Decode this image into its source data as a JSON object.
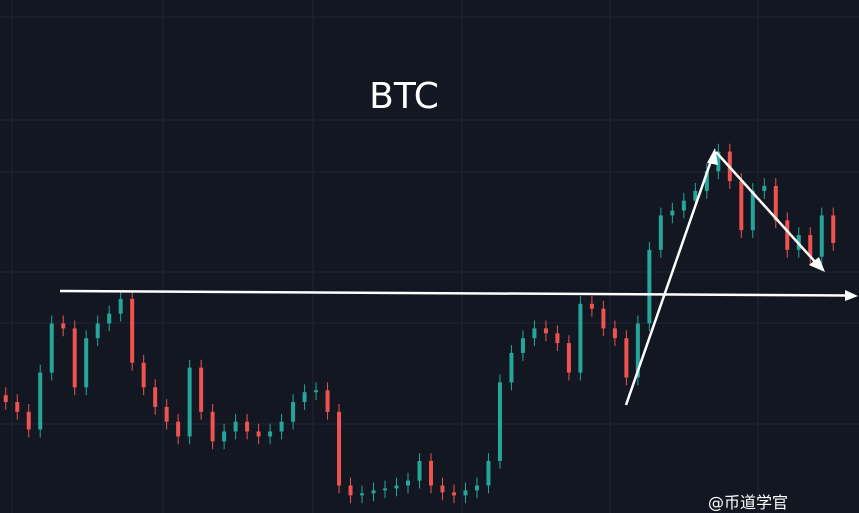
{
  "chart_data": {
    "type": "candlestick",
    "title": "BTC",
    "watermark": "@币道学官",
    "open": [
      110,
      103,
      93,
      75,
      133,
      183,
      178,
      118,
      168,
      183,
      193,
      208,
      143,
      118,
      98,
      83,
      68,
      138,
      93,
      63,
      73,
      83,
      73,
      68,
      73,
      83,
      103,
      113,
      115,
      93,
      18,
      8,
      10,
      13,
      15,
      18,
      23,
      43,
      18,
      11,
      8,
      13,
      18,
      43,
      123,
      153,
      168,
      178,
      173,
      163,
      133,
      203,
      198,
      178,
      168,
      128,
      183,
      258,
      293,
      298,
      308,
      318,
      338,
      358,
      328,
      278,
      318,
      323,
      288,
      258,
      273,
      251,
      293
    ],
    "high": [
      118,
      111,
      101,
      141,
      191,
      191,
      186,
      176,
      191,
      201,
      216,
      216,
      151,
      126,
      106,
      91,
      146,
      146,
      101,
      81,
      91,
      91,
      81,
      81,
      91,
      111,
      121,
      123,
      123,
      101,
      26,
      18,
      21,
      23,
      26,
      31,
      51,
      51,
      26,
      19,
      21,
      26,
      51,
      131,
      161,
      176,
      186,
      186,
      181,
      171,
      211,
      211,
      206,
      186,
      176,
      191,
      266,
      301,
      306,
      316,
      326,
      346,
      366,
      366,
      336,
      326,
      331,
      331,
      296,
      281,
      281,
      301,
      301
    ],
    "low": [
      95,
      85,
      67,
      67,
      125,
      170,
      110,
      110,
      160,
      175,
      185,
      135,
      110,
      90,
      75,
      60,
      60,
      85,
      55,
      55,
      65,
      65,
      60,
      60,
      65,
      75,
      95,
      105,
      85,
      10,
      0,
      0,
      2,
      5,
      7,
      10,
      15,
      10,
      3,
      0,
      0,
      5,
      10,
      35,
      115,
      145,
      160,
      165,
      155,
      125,
      125,
      190,
      170,
      160,
      120,
      120,
      175,
      250,
      285,
      290,
      300,
      310,
      330,
      320,
      270,
      270,
      310,
      280,
      250,
      250,
      243,
      243,
      257
    ],
    "close": [
      103,
      93,
      75,
      133,
      183,
      178,
      118,
      168,
      183,
      193,
      208,
      143,
      118,
      98,
      83,
      68,
      138,
      93,
      63,
      73,
      83,
      73,
      68,
      73,
      83,
      103,
      113,
      115,
      93,
      18,
      8,
      10,
      13,
      15,
      18,
      23,
      43,
      18,
      11,
      8,
      13,
      18,
      43,
      123,
      153,
      168,
      178,
      173,
      163,
      133,
      203,
      198,
      178,
      168,
      128,
      183,
      258,
      293,
      298,
      308,
      318,
      338,
      358,
      328,
      278,
      318,
      323,
      288,
      258,
      273,
      251,
      293,
      265
    ],
    "up_color": "#26a69a",
    "down_color": "#ef5350",
    "ylim": [
      -10,
      380
    ]
  }
}
